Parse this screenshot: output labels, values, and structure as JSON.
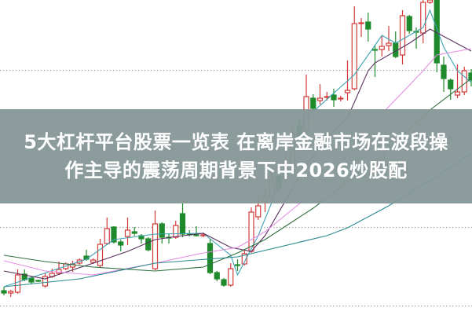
{
  "title_lines": [
    "5大杠杆平台股票一览表 在离岸金融市场在波段操",
    "作主导的震荡周期背景下中2026炒股配"
  ],
  "chart_data": {
    "type": "candlestick",
    "title": "",
    "xlabel": "",
    "ylabel": "",
    "ylim": [
      0,
      39
    ],
    "grid": {
      "horizontal": true,
      "style": "dotted",
      "levels": [
        0,
        10,
        20,
        30
      ]
    },
    "colors": {
      "up": "#d23a3a",
      "down": "#1f8a2c",
      "grid": "#aaaaaa",
      "banner": "#869797"
    },
    "candles": [
      {
        "o": 2.0,
        "h": 2.5,
        "l": 1.4,
        "c": 1.7
      },
      {
        "o": 1.7,
        "h": 2.1,
        "l": 1.2,
        "c": 1.9
      },
      {
        "o": 1.8,
        "h": 4.7,
        "l": 1.6,
        "c": 4.0
      },
      {
        "o": 4.1,
        "h": 4.7,
        "l": 3.2,
        "c": 3.4
      },
      {
        "o": 3.6,
        "h": 3.8,
        "l": 2.9,
        "c": 3.1
      },
      {
        "o": 3.3,
        "h": 3.4,
        "l": 3.1,
        "c": 3.2
      },
      {
        "o": 2.6,
        "h": 4.2,
        "l": 2.4,
        "c": 3.8
      },
      {
        "o": 3.8,
        "h": 4.8,
        "l": 3.6,
        "c": 4.2
      },
      {
        "o": 4.2,
        "h": 5.7,
        "l": 4.0,
        "c": 4.7
      },
      {
        "o": 4.8,
        "h": 5.6,
        "l": 4.6,
        "c": 5.4
      },
      {
        "o": 5.0,
        "h": 5.8,
        "l": 4.4,
        "c": 5.4
      },
      {
        "o": 5.5,
        "h": 6.1,
        "l": 5.3,
        "c": 5.9
      },
      {
        "o": 6.4,
        "h": 7.2,
        "l": 5.8,
        "c": 6.0
      },
      {
        "o": 5.6,
        "h": 6.1,
        "l": 5.4,
        "c": 5.9
      },
      {
        "o": 5.2,
        "h": 8.6,
        "l": 5.0,
        "c": 7.9
      },
      {
        "o": 8.0,
        "h": 11.3,
        "l": 7.8,
        "c": 9.9
      },
      {
        "o": 10.1,
        "h": 10.2,
        "l": 8.0,
        "c": 8.2
      },
      {
        "o": 8.2,
        "h": 8.5,
        "l": 7.0,
        "c": 7.8
      },
      {
        "o": 8.9,
        "h": 11.3,
        "l": 7.8,
        "c": 9.7
      },
      {
        "o": 9.5,
        "h": 10.1,
        "l": 9.0,
        "c": 9.3
      },
      {
        "o": 9.0,
        "h": 9.2,
        "l": 8.0,
        "c": 8.6
      },
      {
        "o": 8.6,
        "h": 8.8,
        "l": 7.0,
        "c": 7.2
      },
      {
        "o": 4.8,
        "h": 12.2,
        "l": 4.6,
        "c": 10.5
      },
      {
        "o": 10.5,
        "h": 10.7,
        "l": 8.0,
        "c": 8.8
      },
      {
        "o": 8.8,
        "h": 9.3,
        "l": 8.0,
        "c": 8.7
      },
      {
        "o": 8.8,
        "h": 10.9,
        "l": 8.6,
        "c": 10.3
      },
      {
        "o": 11.8,
        "h": 13.2,
        "l": 8.8,
        "c": 9.2
      },
      {
        "o": 9.2,
        "h": 9.7,
        "l": 8.9,
        "c": 9.1
      },
      {
        "o": 9.1,
        "h": 10.2,
        "l": 8.9,
        "c": 9.0
      },
      {
        "o": 9.0,
        "h": 9.4,
        "l": 8.8,
        "c": 9.1
      },
      {
        "o": 8.0,
        "h": 8.6,
        "l": 4.1,
        "c": 4.3
      },
      {
        "o": 4.3,
        "h": 4.5,
        "l": 3.2,
        "c": 3.5
      },
      {
        "o": 3.4,
        "h": 3.6,
        "l": 2.5,
        "c": 2.7
      },
      {
        "o": 2.7,
        "h": 5.5,
        "l": 2.5,
        "c": 4.8
      },
      {
        "o": 5.3,
        "h": 6.0,
        "l": 4.5,
        "c": 5.2
      },
      {
        "o": 5.4,
        "h": 7.2,
        "l": 5.2,
        "c": 6.7
      },
      {
        "o": 7.0,
        "h": 12.6,
        "l": 6.8,
        "c": 12.0
      },
      {
        "o": 11.4,
        "h": 14.0,
        "l": 11.0,
        "c": 12.8
      },
      {
        "o": 13.2,
        "h": 15.0,
        "l": 12.0,
        "c": 14.0
      },
      {
        "o": 14.0,
        "h": 17.0,
        "l": 13.5,
        "c": 16.0
      },
      {
        "o": 16.5,
        "h": 17.5,
        "l": 14.5,
        "c": 15.0
      },
      {
        "o": 16.2,
        "h": 19.5,
        "l": 15.8,
        "c": 18.5
      },
      {
        "o": 18.0,
        "h": 23.0,
        "l": 17.5,
        "c": 22.0
      },
      {
        "o": 23.0,
        "h": 24.0,
        "l": 20.0,
        "c": 21.5
      },
      {
        "o": 22.5,
        "h": 29.5,
        "l": 22.0,
        "c": 26.7
      },
      {
        "o": 26.5,
        "h": 27.0,
        "l": 25.0,
        "c": 25.2
      },
      {
        "o": 26.2,
        "h": 28.3,
        "l": 25.7,
        "c": 26.5
      },
      {
        "o": 26.6,
        "h": 27.3,
        "l": 26.2,
        "c": 26.7
      },
      {
        "o": 26.9,
        "h": 27.7,
        "l": 25.4,
        "c": 26.3
      },
      {
        "o": 26.4,
        "h": 26.8,
        "l": 26.1,
        "c": 26.5
      },
      {
        "o": 27.2,
        "h": 31.3,
        "l": 26.2,
        "c": 27.5
      },
      {
        "o": 27.7,
        "h": 38.2,
        "l": 27.5,
        "c": 36.0
      },
      {
        "o": 36.0,
        "h": 36.7,
        "l": 34.3,
        "c": 36.1
      },
      {
        "o": 36.2,
        "h": 37.4,
        "l": 33.7,
        "c": 35.3
      },
      {
        "o": 32.7,
        "h": 33.3,
        "l": 29.2,
        "c": 32.6
      },
      {
        "o": 32.7,
        "h": 34.5,
        "l": 31.8,
        "c": 33.1
      },
      {
        "o": 33.2,
        "h": 35.7,
        "l": 32.5,
        "c": 33.5
      },
      {
        "o": 33.5,
        "h": 35.0,
        "l": 31.6,
        "c": 31.8
      },
      {
        "o": 32.0,
        "h": 37.7,
        "l": 30.8,
        "c": 37.0
      },
      {
        "o": 36.9,
        "h": 37.1,
        "l": 34.7,
        "c": 35.1
      },
      {
        "o": 35.0,
        "h": 35.5,
        "l": 32.8,
        "c": 34.9
      },
      {
        "o": 34.8,
        "h": 39.0,
        "l": 33.5,
        "c": 38.7
      },
      {
        "o": 38.7,
        "h": 39.5,
        "l": 38.5,
        "c": 39.0
      },
      {
        "o": 39.0,
        "h": 39.5,
        "l": 29.8,
        "c": 31.0
      },
      {
        "o": 30.7,
        "h": 31.8,
        "l": 27.3,
        "c": 29.0
      },
      {
        "o": 28.8,
        "h": 29.0,
        "l": 26.3,
        "c": 27.7
      },
      {
        "o": 26.9,
        "h": 30.8,
        "l": 26.5,
        "c": 27.3
      },
      {
        "o": 27.3,
        "h": 30.5,
        "l": 26.9,
        "c": 30.0
      },
      {
        "o": 29.7,
        "h": 30.2,
        "l": 28.0,
        "c": 28.8
      }
    ],
    "moving_averages": [
      {
        "color": "#3fa2b4",
        "points": [
          [
            0,
            2.5
          ],
          [
            12,
            6.0
          ],
          [
            16,
            8.5
          ],
          [
            22,
            9.2
          ],
          [
            29,
            9.3
          ],
          [
            33,
            6.5
          ],
          [
            34,
            4.0
          ],
          [
            37,
            9.0
          ],
          [
            44,
            24
          ],
          [
            51,
            29.5
          ],
          [
            55,
            34.5
          ],
          [
            57,
            33.5
          ],
          [
            61,
            35.5
          ],
          [
            62,
            37.7
          ],
          [
            64,
            33
          ],
          [
            66,
            30
          ],
          [
            68,
            28.5
          ]
        ]
      },
      {
        "color": "#5a2f5e",
        "points": [
          [
            0,
            4.5
          ],
          [
            6,
            3.5
          ],
          [
            13,
            5.5
          ],
          [
            18,
            7.0
          ],
          [
            22,
            8.5
          ],
          [
            26,
            9.0
          ],
          [
            29,
            9.3
          ],
          [
            33,
            7.5
          ],
          [
            36,
            7.0
          ],
          [
            38,
            9.0
          ],
          [
            44,
            18
          ],
          [
            47,
            21.5
          ],
          [
            50,
            24
          ],
          [
            53,
            30
          ],
          [
            54,
            31
          ],
          [
            59,
            33.5
          ],
          [
            62,
            35.3
          ],
          [
            68,
            32.5
          ]
        ]
      },
      {
        "color": "#e58ee6",
        "points": [
          [
            0,
            5.8
          ],
          [
            6,
            4.5
          ],
          [
            13,
            4.0
          ],
          [
            22,
            5.5
          ],
          [
            29,
            6.8
          ],
          [
            34,
            7.5
          ],
          [
            38,
            9.5
          ],
          [
            45,
            14.5
          ],
          [
            47,
            16
          ],
          [
            55,
            24.5
          ],
          [
            61,
            30
          ],
          [
            63,
            32
          ],
          [
            68,
            32.8
          ]
        ]
      },
      {
        "color": "#2f6f3f",
        "points": [
          [
            0,
            6.5
          ],
          [
            6,
            5.7
          ],
          [
            13,
            5.0
          ],
          [
            22,
            4.5
          ],
          [
            29,
            5.0
          ],
          [
            34,
            6.8
          ],
          [
            38,
            8.5
          ],
          [
            45,
            12.5
          ],
          [
            54,
            18.5
          ],
          [
            62,
            25
          ],
          [
            68,
            29
          ]
        ]
      },
      {
        "color": "#2a8a90",
        "points": [
          [
            0,
            2.5
          ],
          [
            11,
            3.5
          ],
          [
            22,
            5.5
          ],
          [
            34,
            6.3
          ],
          [
            47,
            9.0
          ],
          [
            50,
            10.0
          ],
          [
            56,
            12.8
          ],
          [
            62,
            16
          ],
          [
            68,
            19.5
          ]
        ]
      }
    ]
  }
}
